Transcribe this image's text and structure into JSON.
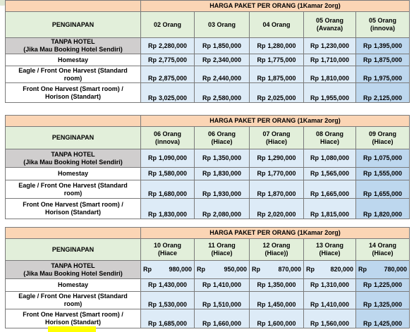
{
  "sections": [
    {
      "title": "HARGA PAKET PER ORANG (1Kamar 2org)",
      "row_header": "PENGINAPAN",
      "columns": [
        {
          "l1": "02 Orang",
          "l2": ""
        },
        {
          "l1": "03 Orang",
          "l2": ""
        },
        {
          "l1": "04 Orang",
          "l2": ""
        },
        {
          "l1": "05 Orang",
          "l2": "(Avanza)"
        },
        {
          "l1": "05 Orang",
          "l2": "(innova)"
        }
      ],
      "rows": [
        {
          "l1": "TANPA HOTEL",
          "l2": "(Jika Mau Booking Hotel Sendiri)",
          "prices": [
            "2,280,000",
            "1,850,000",
            "1,280,000",
            "1,230,000",
            "1,395,000"
          ]
        },
        {
          "l1": "Homestay",
          "l2": "",
          "prices": [
            "2,775,000",
            "2,340,000",
            "1,775,000",
            "1,710,000",
            "1,875,000"
          ]
        },
        {
          "l1": "Eagle / Front One Harvest (Standard",
          "l2": "room)",
          "prices": [
            "2,875,000",
            "2,440,000",
            "1,875,000",
            "1,810,000",
            "1,975,000"
          ]
        },
        {
          "l1": "Front One Harvest (Smart room) /",
          "l2": "Horison (Standart)",
          "prices": [
            "3,025,000",
            "2,580,000",
            "2,025,000",
            "1,955,000",
            "2,125,000"
          ]
        }
      ]
    },
    {
      "title": "HARGA PAKET PER ORANG (1Kamar 2org)",
      "row_header": "PENGINAPAN",
      "columns": [
        {
          "l1": "06 Orang",
          "l2": "(innova)"
        },
        {
          "l1": "06 Orang",
          "l2": "(Hiace)"
        },
        {
          "l1": "07 Orang",
          "l2": "(Hiace)"
        },
        {
          "l1": "08 Orang",
          "l2": "Hiace)"
        },
        {
          "l1": "09 Orang",
          "l2": "(Hiace)"
        }
      ],
      "rows": [
        {
          "l1": "TANPA HOTEL",
          "l2": "(Jika Mau Booking Hotel Sendiri)",
          "prices": [
            "1,090,000",
            "1,350,000",
            "1,290,000",
            "1,080,000",
            "1,075,000"
          ]
        },
        {
          "l1": "Homestay",
          "l2": "",
          "prices": [
            "1,580,000",
            "1,830,000",
            "1,770,000",
            "1,565,000",
            "1,555,000"
          ]
        },
        {
          "l1": "Eagle / Front One Harvest (Standard",
          "l2": "room)",
          "prices": [
            "1,680,000",
            "1,930,000",
            "1,870,000",
            "1,665,000",
            "1,655,000"
          ]
        },
        {
          "l1": "Front One Harvest (Smart room) /",
          "l2": "Horison (Standart)",
          "prices": [
            "1,830,000",
            "2,080,000",
            "2,020,000",
            "1,815,000",
            "1,820,000"
          ]
        }
      ]
    },
    {
      "title": "HARGA PAKET PER ORANG (1Kamar 2org)",
      "row_header": "PENGINAPAN",
      "columns": [
        {
          "l1": "10 Orang",
          "l2": "(Hiace"
        },
        {
          "l1": "11 Orang",
          "l2": "(Hiace)"
        },
        {
          "l1": "12 Orang",
          "l2": "(Hiace))"
        },
        {
          "l1": "13 Orang",
          "l2": "(Hiace)"
        },
        {
          "l1": "14 Orang",
          "l2": "(Hiace)"
        }
      ],
      "rows": [
        {
          "l1": "TANPA HOTEL",
          "l2": "(Jika Mau Booking Hotel Sendiri)",
          "prices": [
            "980,000",
            "950,000",
            "870,000",
            "820,000",
            "780,000"
          ]
        },
        {
          "l1": "Homestay",
          "l2": "",
          "prices": [
            "1,430,000",
            "1,410,000",
            "1,350,000",
            "1,310,000",
            "1,225,000"
          ]
        },
        {
          "l1": "Eagle / Front One Harvest (Standard",
          "l2": "room)",
          "prices": [
            "1,530,000",
            "1,510,000",
            "1,450,000",
            "1,410,000",
            "1,325,000"
          ]
        },
        {
          "l1": "Front One Harvest (Smart room) /",
          "l2": "Horison (Standart)",
          "prices": [
            "1,685,000",
            "1,660,000",
            "1,600,000",
            "1,560,000",
            "1,425,000"
          ]
        }
      ]
    }
  ],
  "currency": "Rp",
  "colors": {
    "title_bg": "#fbd5b5",
    "header_bg": "#e2efda",
    "first_label_bg": "#d0cece",
    "price_bg": "#ddebf7",
    "price_highlight_bg": "#bdd7ee",
    "footer_highlight": "#ffff00"
  }
}
